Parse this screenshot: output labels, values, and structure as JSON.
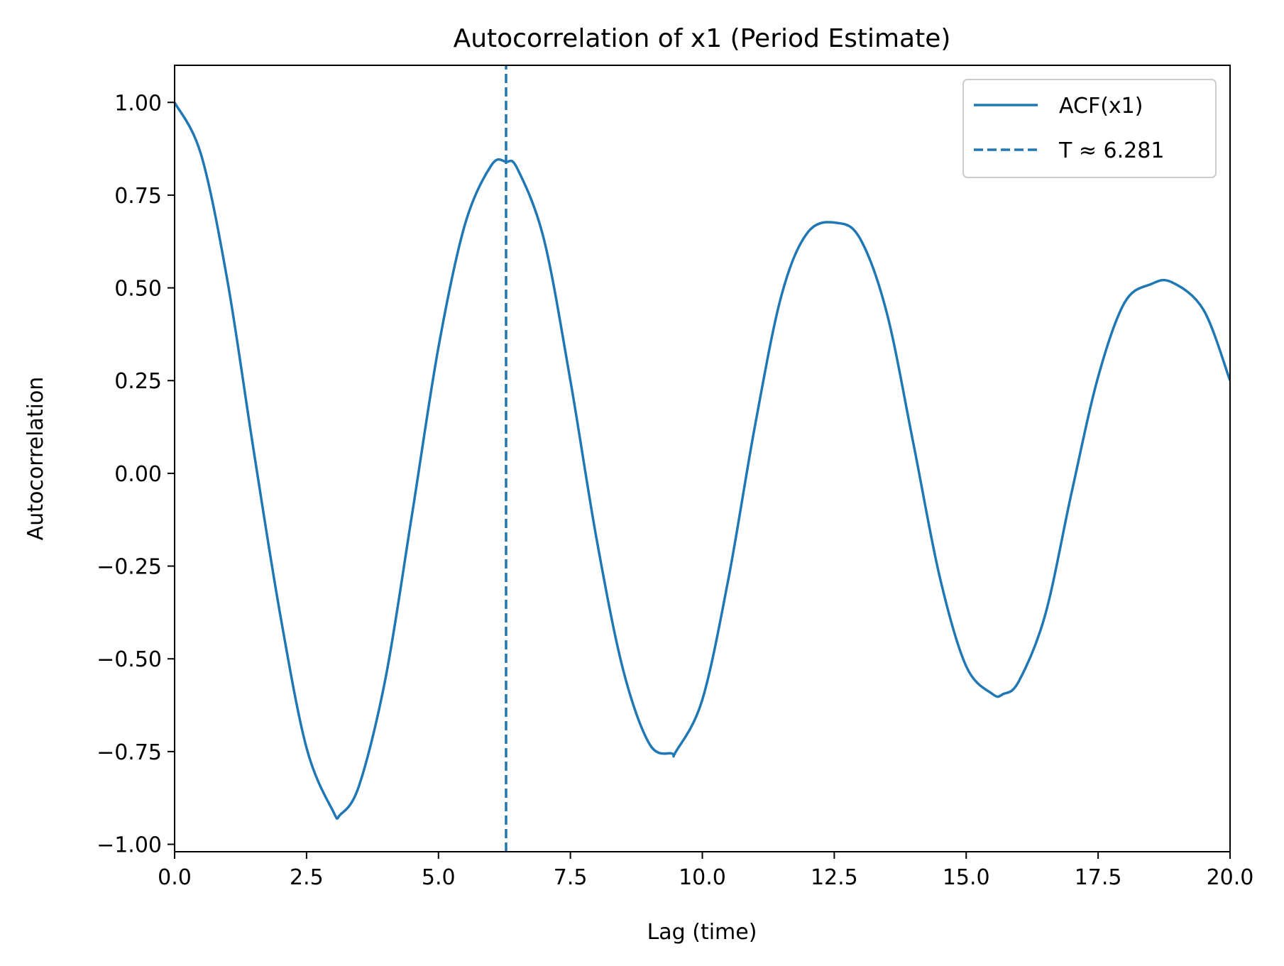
{
  "chart_data": {
    "type": "line",
    "title": "Autocorrelation of x1 (Period Estimate)",
    "xlabel": "Lag (time)",
    "ylabel": "Autocorrelation",
    "xlim": [
      0,
      20
    ],
    "ylim": [
      -1.02,
      1.1
    ],
    "x_ticks": [
      0,
      2.5,
      5,
      7.5,
      10,
      12.5,
      15,
      17.5,
      20
    ],
    "x_tick_labels": [
      "0.0",
      "2.5",
      "5.0",
      "7.5",
      "10.0",
      "12.5",
      "15.0",
      "17.5",
      "20.0"
    ],
    "y_ticks": [
      1.0,
      0.75,
      0.5,
      0.25,
      0.0,
      -0.25,
      -0.5,
      -0.75,
      -1.0
    ],
    "y_tick_labels": [
      "1.00",
      "0.75",
      "0.50",
      "0.25",
      "0.00",
      "−0.25",
      "−0.50",
      "−0.75",
      "−1.00"
    ],
    "grid": false,
    "legend_position": "top-right",
    "series": [
      {
        "name": "ACF(x1)",
        "style": "solid",
        "color": "#1f77b4",
        "x": [
          0,
          0.5,
          1,
          1.5,
          2,
          2.5,
          3,
          3.14,
          3.5,
          4,
          4.5,
          5,
          5.5,
          6,
          6.28,
          6.5,
          7,
          7.5,
          8,
          8.5,
          9,
          9.42,
          9.5,
          10,
          10.5,
          11,
          11.5,
          12,
          12.56,
          13,
          13.5,
          14,
          14.5,
          15,
          15.5,
          15.7,
          16,
          16.5,
          17,
          17.5,
          18,
          18.5,
          18.9,
          19.5,
          20
        ],
        "y": [
          1.0,
          0.86,
          0.52,
          0.06,
          -0.38,
          -0.74,
          -0.91,
          -0.92,
          -0.84,
          -0.55,
          -0.11,
          0.34,
          0.67,
          0.83,
          0.84,
          0.82,
          0.63,
          0.25,
          -0.18,
          -0.53,
          -0.73,
          -0.755,
          -0.75,
          -0.61,
          -0.28,
          0.13,
          0.48,
          0.65,
          0.675,
          0.63,
          0.43,
          0.08,
          -0.28,
          -0.52,
          -0.595,
          -0.595,
          -0.56,
          -0.38,
          -0.05,
          0.26,
          0.46,
          0.51,
          0.515,
          0.44,
          0.25
        ]
      },
      {
        "name": "T ≈ 6.281",
        "style": "dashed",
        "color": "#1f77b4",
        "x": [
          6.281,
          6.281
        ],
        "y": [
          -1.02,
          1.1
        ]
      }
    ]
  }
}
